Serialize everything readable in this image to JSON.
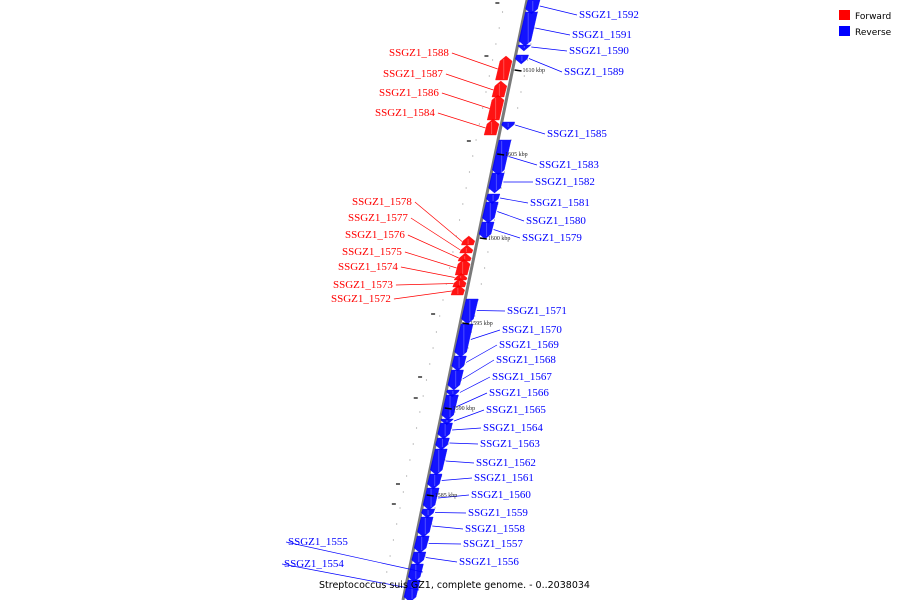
{
  "legend": [
    {
      "label": "Forward",
      "color": "#ff0000"
    },
    {
      "label": "Reverse",
      "color": "#0000ff"
    }
  ],
  "caption": "Streptococcus suis GZ1, complete genome. - 0..2038034",
  "colors": {
    "forward": "#ff0000",
    "reverse": "#0000ff",
    "backbone": "#7a7a7a"
  },
  "scale_marks": [
    "1610 kbp",
    "1605 kbp",
    "1600 kbp",
    "1595 kbp",
    "1590 kbp",
    "1585 kbp"
  ],
  "genes": [
    {
      "name": "SSGZ1_1592",
      "strand": "reverse"
    },
    {
      "name": "SSGZ1_1591",
      "strand": "reverse"
    },
    {
      "name": "SSGZ1_1590",
      "strand": "reverse"
    },
    {
      "name": "SSGZ1_1589",
      "strand": "reverse"
    },
    {
      "name": "SSGZ1_1588",
      "strand": "forward"
    },
    {
      "name": "SSGZ1_1587",
      "strand": "forward"
    },
    {
      "name": "SSGZ1_1586",
      "strand": "forward"
    },
    {
      "name": "SSGZ1_1584",
      "strand": "forward"
    },
    {
      "name": "SSGZ1_1585",
      "strand": "reverse"
    },
    {
      "name": "SSGZ1_1583",
      "strand": "reverse"
    },
    {
      "name": "SSGZ1_1582",
      "strand": "reverse"
    },
    {
      "name": "SSGZ1_1581",
      "strand": "reverse"
    },
    {
      "name": "SSGZ1_1580",
      "strand": "reverse"
    },
    {
      "name": "SSGZ1_1579",
      "strand": "reverse"
    },
    {
      "name": "SSGZ1_1578",
      "strand": "forward"
    },
    {
      "name": "SSGZ1_1577",
      "strand": "forward"
    },
    {
      "name": "SSGZ1_1576",
      "strand": "forward"
    },
    {
      "name": "SSGZ1_1575",
      "strand": "forward"
    },
    {
      "name": "SSGZ1_1574",
      "strand": "forward"
    },
    {
      "name": "SSGZ1_1573",
      "strand": "forward"
    },
    {
      "name": "SSGZ1_1572",
      "strand": "forward"
    },
    {
      "name": "SSGZ1_1571",
      "strand": "reverse"
    },
    {
      "name": "SSGZ1_1570",
      "strand": "reverse"
    },
    {
      "name": "SSGZ1_1569",
      "strand": "reverse"
    },
    {
      "name": "SSGZ1_1568",
      "strand": "reverse"
    },
    {
      "name": "SSGZ1_1567",
      "strand": "reverse"
    },
    {
      "name": "SSGZ1_1566",
      "strand": "reverse"
    },
    {
      "name": "SSGZ1_1565",
      "strand": "reverse"
    },
    {
      "name": "SSGZ1_1564",
      "strand": "reverse"
    },
    {
      "name": "SSGZ1_1563",
      "strand": "reverse"
    },
    {
      "name": "SSGZ1_1562",
      "strand": "reverse"
    },
    {
      "name": "SSGZ1_1561",
      "strand": "reverse"
    },
    {
      "name": "SSGZ1_1560",
      "strand": "reverse"
    },
    {
      "name": "SSGZ1_1559",
      "strand": "reverse"
    },
    {
      "name": "SSGZ1_1558",
      "strand": "reverse"
    },
    {
      "name": "SSGZ1_1557",
      "strand": "reverse"
    },
    {
      "name": "SSGZ1_1556",
      "strand": "reverse"
    },
    {
      "name": "SSGZ1_1555",
      "strand": "reverse"
    },
    {
      "name": "SSGZ1_1554",
      "strand": "reverse"
    }
  ]
}
